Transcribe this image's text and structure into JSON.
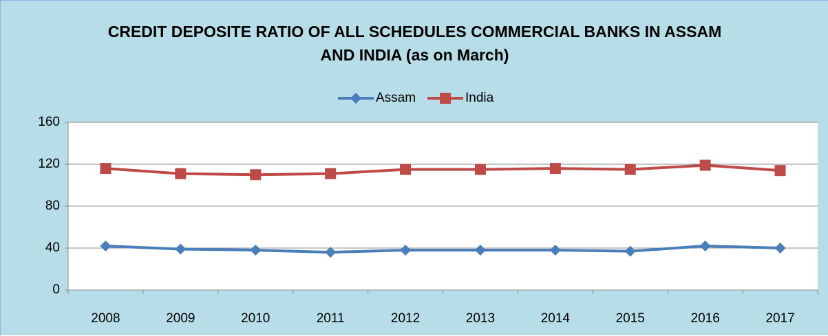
{
  "chart_data": {
    "type": "line",
    "title": "CREDIT DEPOSITE RATIO OF ALL SCHEDULES COMMERCIAL BANKS IN ASSAM AND INDIA (as on March)",
    "categories": [
      "2008",
      "2009",
      "2010",
      "2011",
      "2012",
      "2013",
      "2014",
      "2015",
      "2016",
      "2017"
    ],
    "series": [
      {
        "name": "Assam",
        "color": "#4a7ebb",
        "values": [
          42,
          39,
          38,
          36,
          38,
          38,
          38,
          37,
          42,
          40
        ]
      },
      {
        "name": "India",
        "color": "#be4b48",
        "values": [
          116,
          111,
          110,
          111,
          115,
          115,
          116,
          115,
          119,
          114
        ]
      }
    ],
    "ylim": [
      0,
      160
    ],
    "yticks": [
      0,
      40,
      80,
      120,
      160
    ],
    "grid": true,
    "legend": "top"
  }
}
